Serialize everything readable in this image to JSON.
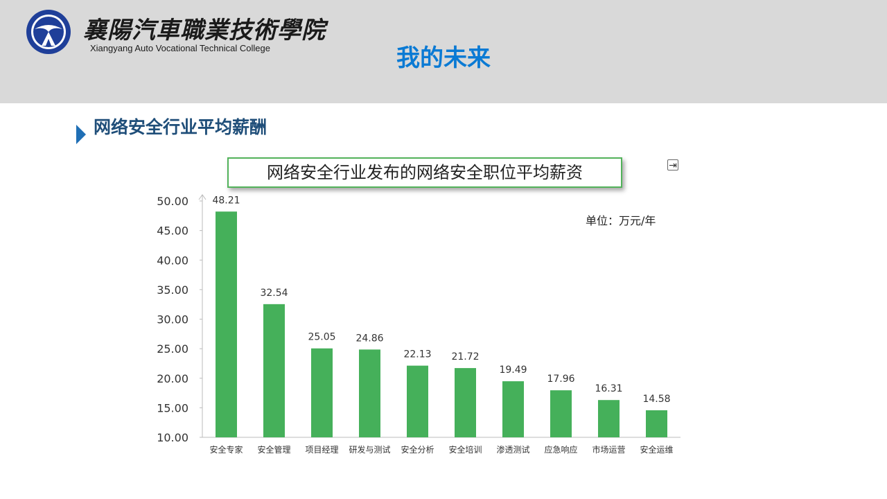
{
  "header": {
    "college_name_cn": "襄陽汽車職業技術學院",
    "college_name_en": "Xiangyang Auto Vocational Technical College",
    "page_title": "我的未来"
  },
  "section": {
    "title": "网络安全行业平均薪酬"
  },
  "chart_data": {
    "type": "bar",
    "title": "网络安全行业发布的网络安全职位平均薪资",
    "unit_label": "单位：万元/年",
    "categories": [
      "安全专家",
      "安全管理",
      "项目经理",
      "研发与测试",
      "安全分析",
      "安全培训",
      "渗透测试",
      "应急响应",
      "市场运营",
      "安全运维"
    ],
    "values": [
      48.21,
      32.54,
      25.05,
      24.86,
      22.13,
      21.72,
      19.49,
      17.96,
      16.31,
      14.58
    ],
    "value_labels": [
      "48.21",
      "32.54",
      "25.05",
      "24.86",
      "22.13",
      "21.72",
      "19.49",
      "17.96",
      "16.31",
      "14.58"
    ],
    "ylim": [
      10,
      50
    ],
    "yticks": [
      "10.00",
      "15.00",
      "20.00",
      "25.00",
      "30.00",
      "35.00",
      "40.00",
      "45.00",
      "50.00"
    ],
    "grid": false,
    "bar_color": "#45b05a",
    "accent_color": "#0a7ad4"
  }
}
